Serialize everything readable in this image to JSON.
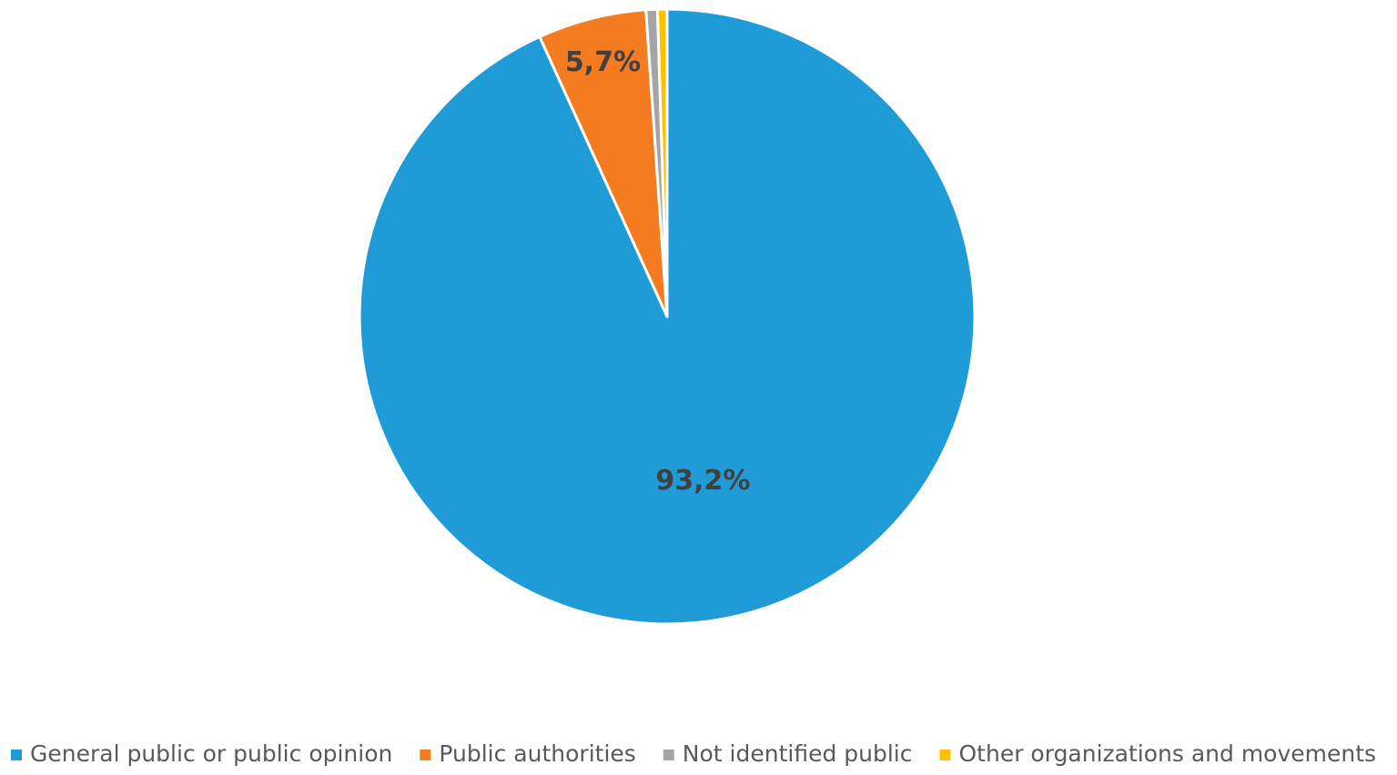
{
  "chart_data": {
    "type": "pie",
    "categories": [
      "General public or public opinion",
      "Public authorities",
      "Not identified public",
      "Other organizations and movements"
    ],
    "values": [
      93.2,
      5.7,
      0.6,
      0.5
    ],
    "value_labels": [
      "93,2%",
      "5,7%",
      null,
      null
    ],
    "colors": [
      "#1f9bd8",
      "#f47b20",
      "#a5a5a5",
      "#ffc000"
    ],
    "legend": "bottom"
  }
}
